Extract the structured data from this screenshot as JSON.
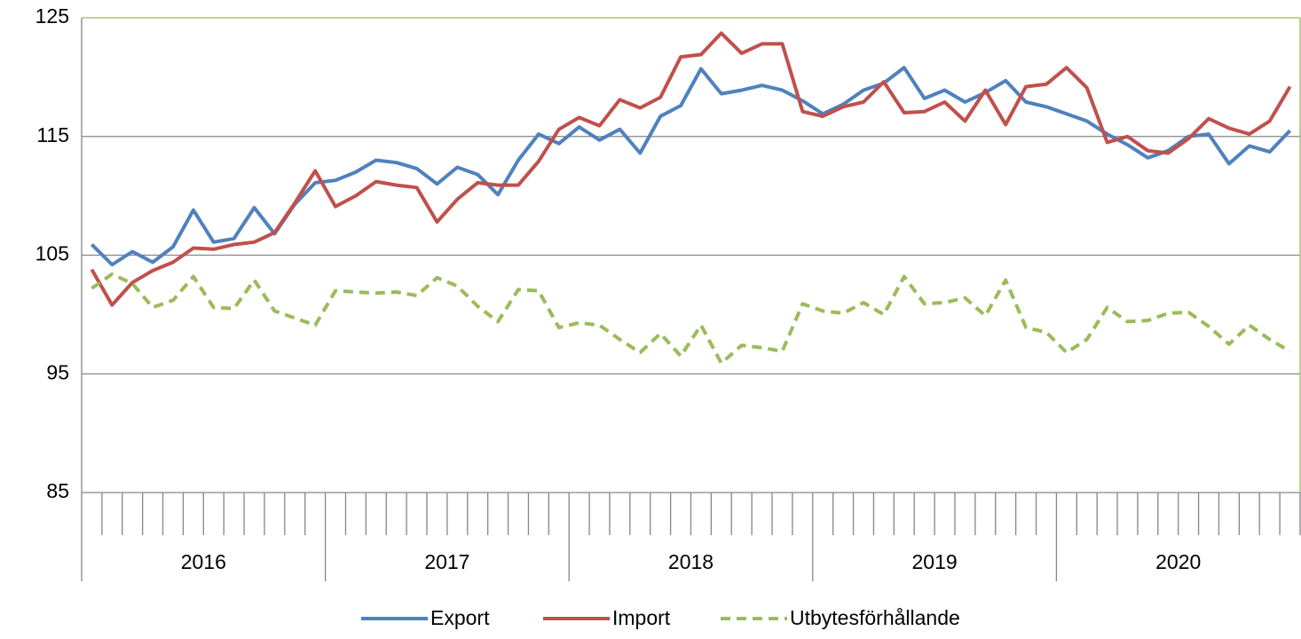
{
  "chart_data": {
    "type": "line",
    "categories": [
      null,
      null,
      null,
      null,
      null,
      null,
      null,
      null,
      null,
      null,
      null,
      null,
      null,
      null,
      null,
      null,
      null,
      null,
      null,
      null,
      null,
      null,
      null,
      null,
      null,
      null,
      null,
      null,
      null,
      null,
      null,
      null,
      null,
      null,
      null,
      null,
      null,
      null,
      null,
      null,
      null,
      null,
      null,
      null,
      null,
      null,
      null,
      null,
      null,
      null,
      null,
      null,
      null,
      null,
      null,
      null,
      null,
      null,
      null,
      null
    ],
    "groups": [
      "2016",
      "2017",
      "2018",
      "2019",
      "2020"
    ],
    "ylim": [
      85,
      125
    ],
    "yticks": [
      85,
      95,
      105,
      115,
      125
    ],
    "grid": true,
    "legend": "bottom",
    "series": [
      {
        "name": "Export",
        "color": "#4f81bd",
        "dash": false,
        "values": [
          105.9,
          104.2,
          105.3,
          104.4,
          105.7,
          108.8,
          106.1,
          106.4,
          109.0,
          106.8,
          109.3,
          111.1,
          111.3,
          112.0,
          113.0,
          112.8,
          112.3,
          111.0,
          112.4,
          111.8,
          110.1,
          113.0,
          115.2,
          114.4,
          115.8,
          114.7,
          115.6,
          113.6,
          116.7,
          117.6,
          120.7,
          118.6,
          118.9,
          119.3,
          118.9,
          118.0,
          116.9,
          117.7,
          118.9,
          119.5,
          120.8,
          118.2,
          118.9,
          117.9,
          118.7,
          119.7,
          117.9,
          117.5,
          116.9,
          116.3,
          115.2,
          114.3,
          113.2,
          113.8,
          115.0,
          115.2,
          112.7,
          114.2,
          113.7,
          115.5
        ]
      },
      {
        "name": "Import",
        "color": "#c0504d",
        "dash": false,
        "values": [
          103.8,
          100.8,
          102.7,
          103.7,
          104.4,
          105.6,
          105.5,
          105.9,
          106.1,
          106.9,
          109.4,
          112.1,
          109.1,
          110.0,
          111.2,
          110.9,
          110.7,
          107.8,
          109.7,
          111.1,
          110.9,
          110.9,
          112.9,
          115.6,
          116.6,
          115.9,
          118.1,
          117.4,
          118.3,
          121.7,
          121.9,
          123.7,
          122.0,
          122.8,
          122.8,
          117.1,
          116.7,
          117.5,
          117.9,
          119.6,
          117.0,
          117.1,
          117.9,
          116.3,
          118.9,
          116.0,
          119.2,
          119.4,
          120.8,
          119.1,
          114.5,
          115.0,
          113.8,
          113.6,
          114.8,
          116.5,
          115.7,
          115.2,
          116.3,
          119.2
        ]
      },
      {
        "name": "Utbytesförhållande",
        "color": "#9bbb59",
        "dash": true,
        "values": [
          102.2,
          103.4,
          102.6,
          100.6,
          101.2,
          103.2,
          100.6,
          100.5,
          102.9,
          100.3,
          99.7,
          99.1,
          102.0,
          101.9,
          101.8,
          101.9,
          101.6,
          103.1,
          102.4,
          100.7,
          99.4,
          102.1,
          102.0,
          98.9,
          99.3,
          99.1,
          97.9,
          96.8,
          98.4,
          96.5,
          99.1,
          95.9,
          97.4,
          97.2,
          96.9,
          100.9,
          100.3,
          100.1,
          101.0,
          100.0,
          103.2,
          100.9,
          101.0,
          101.4,
          99.9,
          102.9,
          98.9,
          98.5,
          96.8,
          97.9,
          100.6,
          99.4,
          99.5,
          100.1,
          100.2,
          99.0,
          97.5,
          99.1,
          97.9,
          96.9
        ]
      }
    ]
  }
}
